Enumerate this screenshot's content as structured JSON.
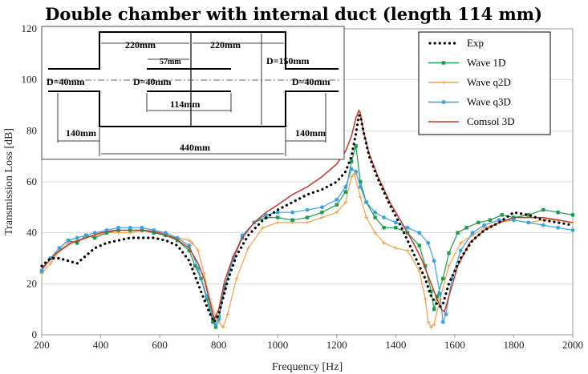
{
  "chart_data": {
    "type": "line",
    "title": "Double chamber with internal duct (length 114 mm)",
    "xlabel": "Frequency [Hz]",
    "ylabel": "Transmission Loss [dB]",
    "xlim": [
      200,
      2000
    ],
    "ylim": [
      0,
      120
    ],
    "xticks": [
      200,
      400,
      600,
      800,
      1000,
      1200,
      1400,
      1600,
      1800,
      2000
    ],
    "yticks": [
      0,
      20,
      40,
      60,
      80,
      100,
      120
    ],
    "grid": "horizontal",
    "legend_position": "top-right",
    "series": [
      {
        "name": "Exp",
        "color": "#000000",
        "style": "dotted",
        "x": [
          200,
          230,
          260,
          290,
          320,
          350,
          380,
          420,
          460,
          500,
          540,
          580,
          620,
          660,
          700,
          730,
          760,
          775,
          785,
          800,
          830,
          860,
          900,
          950,
          1000,
          1050,
          1100,
          1150,
          1200,
          1230,
          1250,
          1265,
          1275,
          1280,
          1290,
          1310,
          1340,
          1380,
          1420,
          1460,
          1500,
          1520,
          1540,
          1550,
          1560,
          1580,
          1620,
          1660,
          1700,
          1750,
          1800,
          1850,
          1900,
          1950,
          2000
        ],
        "y": [
          27,
          30,
          30,
          29,
          28,
          31,
          34,
          36,
          37,
          38,
          38,
          38,
          37,
          35,
          29,
          20,
          11,
          7,
          5,
          8,
          21,
          31,
          39,
          45,
          49,
          52,
          55,
          57,
          60,
          64,
          70,
          79,
          86,
          86,
          80,
          70,
          61,
          51,
          42,
          32,
          22,
          15,
          12,
          11,
          12,
          20,
          30,
          37,
          41,
          44,
          48,
          47,
          45,
          44,
          43
        ]
      },
      {
        "name": "Wave 1D",
        "color": "#1f9a4a",
        "style": "solid-square",
        "x": [
          200,
          230,
          260,
          290,
          320,
          350,
          380,
          420,
          460,
          500,
          540,
          580,
          620,
          660,
          700,
          720,
          740,
          760,
          780,
          790,
          800,
          820,
          850,
          880,
          920,
          960,
          1000,
          1050,
          1100,
          1150,
          1200,
          1230,
          1250,
          1265,
          1280,
          1300,
          1330,
          1360,
          1400,
          1440,
          1480,
          1500,
          1520,
          1530,
          1540,
          1560,
          1580,
          1610,
          1640,
          1680,
          1720,
          1760,
          1800,
          1850,
          1900,
          1950,
          2000
        ],
        "y": [
          25,
          30,
          34,
          37,
          36,
          39,
          38,
          40,
          41,
          41,
          41,
          40,
          39,
          37,
          33,
          27,
          22,
          14,
          5,
          3,
          7,
          19,
          30,
          38,
          44,
          46,
          46,
          45,
          46,
          48,
          51,
          56,
          68,
          74,
          60,
          52,
          46,
          42,
          42,
          40,
          35,
          27,
          17,
          10,
          15,
          22,
          32,
          40,
          42,
          44,
          45,
          47,
          46,
          47,
          49,
          48,
          47
        ]
      },
      {
        "name": "Wave q2D",
        "color": "#f0a24a",
        "style": "solid-star",
        "x": [
          200,
          230,
          260,
          290,
          320,
          350,
          380,
          420,
          460,
          500,
          540,
          580,
          620,
          660,
          700,
          710,
          730,
          750,
          770,
          790,
          800,
          815,
          830,
          860,
          900,
          950,
          1000,
          1050,
          1100,
          1150,
          1200,
          1230,
          1250,
          1260,
          1280,
          1300,
          1330,
          1360,
          1400,
          1440,
          1480,
          1500,
          1510,
          1520,
          1530,
          1550,
          1580,
          1620,
          1660,
          1700,
          1750,
          1800,
          1850,
          1900,
          1950,
          2000
        ],
        "y": [
          24,
          28,
          33,
          36,
          37,
          38,
          39,
          40,
          40,
          40,
          41,
          40,
          39,
          38,
          37,
          36,
          33,
          24,
          14,
          7,
          5,
          3,
          8,
          22,
          34,
          42,
          44,
          44,
          44,
          46,
          48,
          52,
          62,
          63,
          54,
          46,
          40,
          36,
          34,
          33,
          25,
          14,
          5,
          3,
          4,
          14,
          27,
          36,
          39,
          42,
          44,
          45,
          44,
          45,
          45,
          44
        ]
      },
      {
        "name": "Wave q3D",
        "color": "#3aa0e0",
        "style": "solid-dot",
        "x": [
          200,
          230,
          260,
          290,
          320,
          350,
          380,
          420,
          460,
          500,
          540,
          580,
          620,
          660,
          700,
          730,
          760,
          780,
          790,
          800,
          820,
          850,
          880,
          920,
          960,
          1000,
          1050,
          1100,
          1150,
          1200,
          1230,
          1250,
          1265,
          1280,
          1300,
          1330,
          1360,
          1400,
          1440,
          1480,
          1510,
          1530,
          1550,
          1560,
          1570,
          1590,
          1620,
          1660,
          1700,
          1750,
          1800,
          1850,
          1900,
          1950,
          2000
        ],
        "y": [
          25,
          30,
          34,
          37,
          38,
          39,
          40,
          41,
          42,
          42,
          42,
          41,
          40,
          38,
          35,
          26,
          15,
          7,
          4,
          6,
          18,
          30,
          39,
          44,
          47,
          48,
          48,
          49,
          50,
          53,
          58,
          65,
          64,
          58,
          52,
          48,
          46,
          44,
          42,
          40,
          36,
          29,
          16,
          5,
          8,
          22,
          33,
          40,
          43,
          45,
          45,
          44,
          43,
          42,
          41
        ]
      },
      {
        "name": "Comsol 3D",
        "color": "#c0392b",
        "style": "solid",
        "x": [
          200,
          250,
          300,
          350,
          400,
          450,
          500,
          550,
          600,
          650,
          700,
          730,
          750,
          770,
          785,
          800,
          820,
          850,
          880,
          920,
          960,
          1000,
          1050,
          1100,
          1150,
          1200,
          1230,
          1250,
          1265,
          1275,
          1280,
          1290,
          1310,
          1340,
          1380,
          1420,
          1460,
          1490,
          1520,
          1540,
          1555,
          1565,
          1580,
          1610,
          1650,
          1700,
          1750,
          1800,
          1850,
          1900,
          1950,
          2000
        ],
        "y": [
          26,
          32,
          36,
          38,
          40,
          41,
          41,
          41,
          40,
          38,
          34,
          28,
          22,
          13,
          6,
          10,
          21,
          31,
          38,
          44,
          48,
          51,
          55,
          58,
          62,
          67,
          72,
          78,
          85,
          88,
          87,
          80,
          71,
          62,
          52,
          44,
          36,
          29,
          20,
          14,
          10,
          9,
          15,
          27,
          36,
          41,
          44,
          46,
          46,
          46,
          45,
          44
        ]
      }
    ]
  },
  "inset": {
    "labels": {
      "top_left": "220mm",
      "top_right": "220mm",
      "small": "57mm",
      "diameter_chamber": "D=150mm",
      "diameter_inlet": "D=40mm",
      "diameter_duct": "D=40mm",
      "diameter_outlet": "D=40mm",
      "duct_length": "114mm",
      "pipe_left": "140mm",
      "pipe_right": "140mm",
      "total": "440mm"
    }
  }
}
